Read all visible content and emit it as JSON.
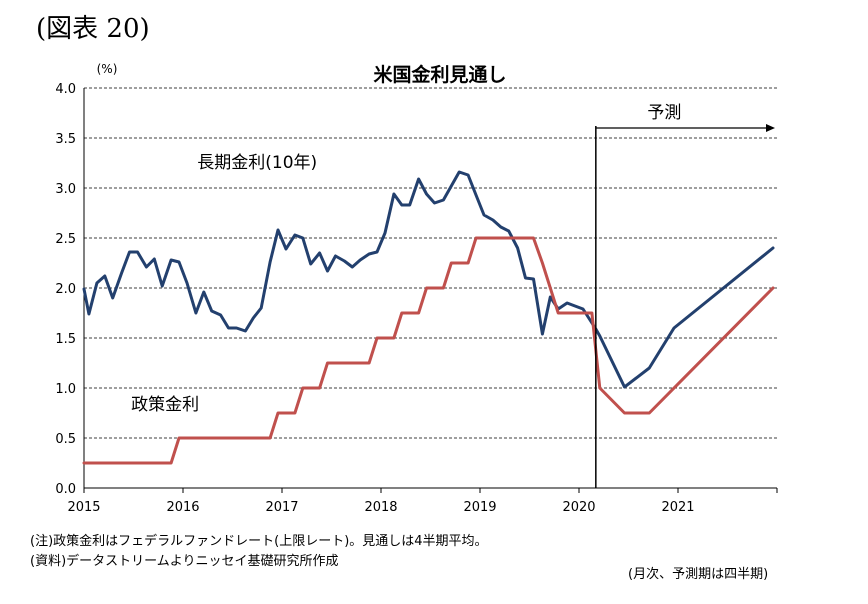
{
  "figure_label": "(図表 20)",
  "notes": {
    "note": "(注)政策金利はフェデラルファンドレート(上限レート)。見通しは4半期平均。",
    "source": "(資料)データストリームよりニッセイ基礎研究所作成",
    "frequency": "(月次、予測期は四半期)"
  },
  "chart_data": {
    "type": "line",
    "title": "米国金利見通し",
    "ylabel": "(%)",
    "xlabel": "",
    "ylim": [
      0.0,
      4.0
    ],
    "xlim": [
      2015.0,
      2022.0
    ],
    "yticks": [
      "0.0",
      "0.5",
      "1.0",
      "1.5",
      "2.0",
      "2.5",
      "3.0",
      "3.5",
      "4.0"
    ],
    "xticks": [
      "2015",
      "2016",
      "2017",
      "2018",
      "2019",
      "2020",
      "2021"
    ],
    "grid": true,
    "forecast": {
      "label": "予測",
      "start": 2020.17
    },
    "series": [
      {
        "name": "長期金利(10年)",
        "color": "#23406e",
        "points": [
          [
            2015.0,
            1.99
          ],
          [
            2015.05,
            1.74
          ],
          [
            2015.13,
            2.05
          ],
          [
            2015.21,
            2.12
          ],
          [
            2015.29,
            1.9
          ],
          [
            2015.38,
            2.15
          ],
          [
            2015.46,
            2.36
          ],
          [
            2015.54,
            2.36
          ],
          [
            2015.63,
            2.21
          ],
          [
            2015.71,
            2.29
          ],
          [
            2015.79,
            2.02
          ],
          [
            2015.88,
            2.28
          ],
          [
            2015.96,
            2.26
          ],
          [
            2016.04,
            2.05
          ],
          [
            2016.13,
            1.75
          ],
          [
            2016.21,
            1.96
          ],
          [
            2016.29,
            1.77
          ],
          [
            2016.38,
            1.73
          ],
          [
            2016.46,
            1.6
          ],
          [
            2016.54,
            1.6
          ],
          [
            2016.63,
            1.57
          ],
          [
            2016.71,
            1.7
          ],
          [
            2016.79,
            1.8
          ],
          [
            2016.88,
            2.26
          ],
          [
            2016.96,
            2.58
          ],
          [
            2017.04,
            2.39
          ],
          [
            2017.13,
            2.53
          ],
          [
            2017.21,
            2.5
          ],
          [
            2017.29,
            2.24
          ],
          [
            2017.38,
            2.35
          ],
          [
            2017.46,
            2.17
          ],
          [
            2017.54,
            2.32
          ],
          [
            2017.63,
            2.27
          ],
          [
            2017.71,
            2.21
          ],
          [
            2017.79,
            2.28
          ],
          [
            2017.88,
            2.34
          ],
          [
            2017.96,
            2.36
          ],
          [
            2018.04,
            2.55
          ],
          [
            2018.13,
            2.94
          ],
          [
            2018.21,
            2.83
          ],
          [
            2018.29,
            2.83
          ],
          [
            2018.38,
            3.09
          ],
          [
            2018.46,
            2.94
          ],
          [
            2018.54,
            2.85
          ],
          [
            2018.63,
            2.88
          ],
          [
            2018.71,
            3.02
          ],
          [
            2018.79,
            3.16
          ],
          [
            2018.88,
            3.13
          ],
          [
            2018.96,
            2.93
          ],
          [
            2019.04,
            2.73
          ],
          [
            2019.13,
            2.68
          ],
          [
            2019.21,
            2.61
          ],
          [
            2019.29,
            2.57
          ],
          [
            2019.38,
            2.4
          ],
          [
            2019.46,
            2.1
          ],
          [
            2019.54,
            2.09
          ],
          [
            2019.63,
            1.54
          ],
          [
            2019.71,
            1.91
          ],
          [
            2019.79,
            1.79
          ],
          [
            2019.88,
            1.85
          ],
          [
            2019.96,
            1.82
          ],
          [
            2020.04,
            1.79
          ],
          [
            2020.17,
            1.59
          ],
          [
            2020.21,
            1.52
          ],
          [
            2020.46,
            1.01
          ],
          [
            2020.71,
            1.2
          ],
          [
            2020.96,
            1.6
          ],
          [
            2021.96,
            2.4
          ]
        ]
      },
      {
        "name": "政策金利",
        "color": "#c0504d",
        "points": [
          [
            2015.0,
            0.25
          ],
          [
            2015.88,
            0.25
          ],
          [
            2015.96,
            0.5
          ],
          [
            2016.88,
            0.5
          ],
          [
            2016.96,
            0.75
          ],
          [
            2017.13,
            0.75
          ],
          [
            2017.21,
            1.0
          ],
          [
            2017.38,
            1.0
          ],
          [
            2017.46,
            1.25
          ],
          [
            2017.88,
            1.25
          ],
          [
            2017.96,
            1.5
          ],
          [
            2018.13,
            1.5
          ],
          [
            2018.21,
            1.75
          ],
          [
            2018.38,
            1.75
          ],
          [
            2018.46,
            2.0
          ],
          [
            2018.63,
            2.0
          ],
          [
            2018.71,
            2.25
          ],
          [
            2018.88,
            2.25
          ],
          [
            2018.96,
            2.5
          ],
          [
            2019.54,
            2.5
          ],
          [
            2019.63,
            2.25
          ],
          [
            2019.71,
            2.0
          ],
          [
            2019.79,
            1.75
          ],
          [
            2020.13,
            1.75
          ],
          [
            2020.21,
            1.0
          ],
          [
            2020.46,
            0.75
          ],
          [
            2020.71,
            0.75
          ],
          [
            2021.96,
            2.0
          ]
        ]
      }
    ],
    "annotations": [
      {
        "text": "長期金利(10年)",
        "x": 2016.75,
        "y": 3.2
      },
      {
        "text": "政策金利",
        "x": 2015.82,
        "y": 0.78
      }
    ]
  }
}
